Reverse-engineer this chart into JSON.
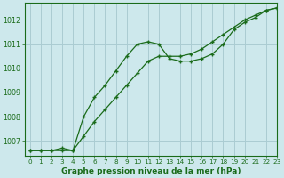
{
  "line1_x": [
    0,
    1,
    2,
    3,
    4,
    5,
    6,
    7,
    8,
    9,
    10,
    11,
    12,
    13,
    14,
    15,
    16,
    17,
    18,
    19,
    20,
    21,
    22,
    23
  ],
  "line1_y": [
    1006.6,
    1006.6,
    1006.6,
    1006.6,
    1006.6,
    1008.0,
    1008.8,
    1009.3,
    1009.9,
    1010.5,
    1011.0,
    1011.1,
    1011.0,
    1010.4,
    1010.3,
    1010.3,
    1010.4,
    1010.6,
    1011.0,
    1011.6,
    1011.9,
    1012.1,
    1012.4,
    1012.5
  ],
  "line2_x": [
    0,
    1,
    2,
    3,
    4,
    5,
    6,
    7,
    8,
    9,
    10,
    11,
    12,
    13,
    14,
    15,
    16,
    17,
    18,
    19,
    20,
    21,
    22,
    23
  ],
  "line2_y": [
    1006.6,
    1006.6,
    1006.6,
    1006.7,
    1006.6,
    1007.2,
    1007.8,
    1008.3,
    1008.8,
    1009.3,
    1009.8,
    1010.3,
    1010.5,
    1010.5,
    1010.5,
    1010.6,
    1010.8,
    1011.1,
    1011.4,
    1011.7,
    1012.0,
    1012.2,
    1012.4,
    1012.5
  ],
  "line_color": "#1a6b1a",
  "marker": "+",
  "bg_color": "#cde8ec",
  "grid_color": "#aaccd2",
  "title": "Graphe pression niveau de la mer (hPa)",
  "ylim": [
    1006.4,
    1012.7
  ],
  "xlim": [
    -0.5,
    23
  ],
  "yticks": [
    1007,
    1008,
    1009,
    1010,
    1011,
    1012
  ],
  "xticks": [
    0,
    1,
    2,
    3,
    4,
    5,
    6,
    7,
    8,
    9,
    10,
    11,
    12,
    13,
    14,
    15,
    16,
    17,
    18,
    19,
    20,
    21,
    22,
    23
  ]
}
